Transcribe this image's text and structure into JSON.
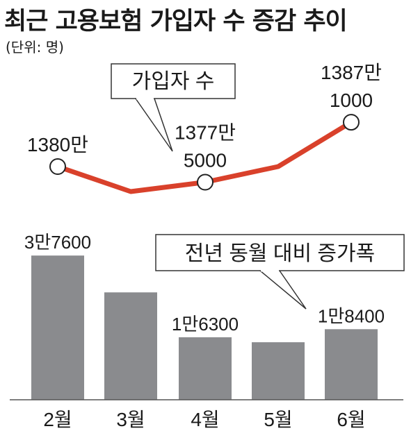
{
  "title": "최근 고용보험 가입자 수 증감 추이",
  "unit_note": "(단위: 명)",
  "colors": {
    "line": "#d9412b",
    "bar": "#8a8b8e",
    "text": "#1a1a1a"
  },
  "chart_data": [
    {
      "type": "line",
      "legend_label": "가입자 수",
      "categories": [
        "2월",
        "3월",
        "4월",
        "5월",
        "6월"
      ],
      "values": [
        13800000,
        13760000,
        13775000,
        13800000,
        13871000
      ],
      "marked_points": [
        {
          "category": "2월",
          "label_lines": [
            "1380만"
          ]
        },
        {
          "category": "4월",
          "label_lines": [
            "1377만",
            "5000"
          ]
        },
        {
          "category": "6월",
          "label_lines": [
            "1387만",
            "1000"
          ]
        }
      ]
    },
    {
      "type": "bar",
      "legend_label": "전년 동월 대비 증가폭",
      "categories": [
        "2월",
        "3월",
        "4월",
        "5월",
        "6월"
      ],
      "values": [
        37600,
        28000,
        16300,
        15000,
        18400
      ],
      "value_labels": [
        "3만7600",
        "",
        "1만6300",
        "",
        "1만8400"
      ]
    }
  ]
}
